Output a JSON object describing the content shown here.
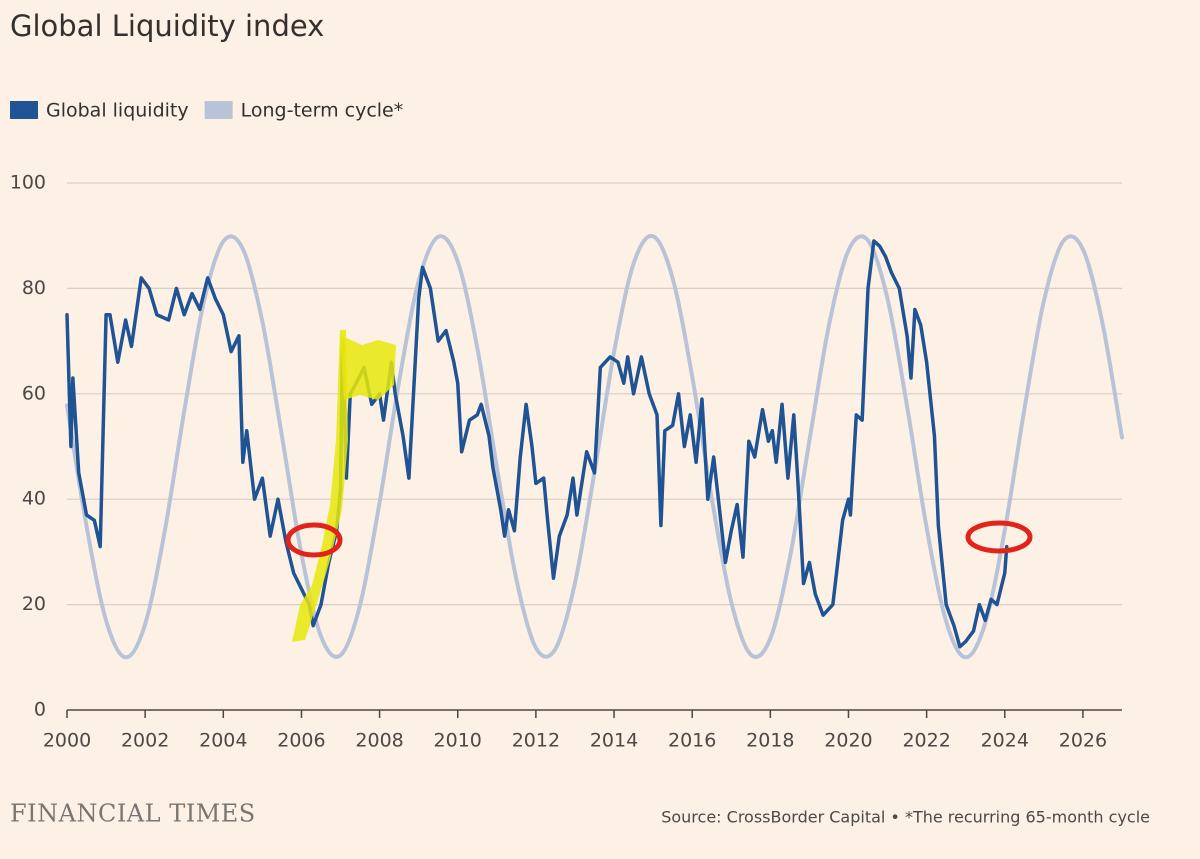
{
  "chart_data": {
    "type": "line",
    "title": "Global Liquidity index",
    "legend": "top-left",
    "grid": true,
    "xlim": [
      2000,
      2027
    ],
    "xticks": [
      2000,
      2002,
      2004,
      2006,
      2008,
      2010,
      2012,
      2014,
      2016,
      2018,
      2020,
      2022,
      2024,
      2026
    ],
    "ylim": [
      0,
      100
    ],
    "yticks": [
      0,
      20,
      40,
      60,
      80,
      100
    ],
    "source": "Source: CrossBorder Capital • *The recurring 65-month cycle",
    "brand": "FINANCIAL TIMES",
    "series": [
      {
        "name": "Global liquidity",
        "color": "#1f5394",
        "x": [
          2000.0,
          2000.1,
          2000.15,
          2000.3,
          2000.5,
          2000.7,
          2000.85,
          2001.0,
          2001.1,
          2001.3,
          2001.5,
          2001.65,
          2001.9,
          2002.1,
          2002.3,
          2002.6,
          2002.8,
          2003.0,
          2003.2,
          2003.4,
          2003.6,
          2003.8,
          2004.0,
          2004.2,
          2004.4,
          2004.5,
          2004.6,
          2004.8,
          2005.0,
          2005.2,
          2005.4,
          2005.6,
          2005.8,
          2006.0,
          2006.2,
          2006.3,
          2006.5,
          2006.7,
          2006.9,
          2007.0,
          2007.05,
          2007.15,
          2007.25,
          2007.4,
          2007.6,
          2007.8,
          2008.0,
          2008.1,
          2008.3,
          2008.4,
          2008.6,
          2008.75,
          2009.0,
          2009.1,
          2009.3,
          2009.5,
          2009.7,
          2009.9,
          2010.0,
          2010.1,
          2010.3,
          2010.5,
          2010.6,
          2010.8,
          2010.9,
          2011.1,
          2011.2,
          2011.3,
          2011.45,
          2011.6,
          2011.75,
          2011.9,
          2012.0,
          2012.2,
          2012.3,
          2012.45,
          2012.6,
          2012.8,
          2012.95,
          2013.05,
          2013.3,
          2013.5,
          2013.65,
          2013.9,
          2014.1,
          2014.25,
          2014.35,
          2014.5,
          2014.7,
          2014.9,
          2015.1,
          2015.2,
          2015.3,
          2015.5,
          2015.65,
          2015.8,
          2015.95,
          2016.1,
          2016.25,
          2016.4,
          2016.55,
          2016.7,
          2016.85,
          2017.0,
          2017.15,
          2017.3,
          2017.45,
          2017.6,
          2017.8,
          2017.95,
          2018.05,
          2018.15,
          2018.3,
          2018.45,
          2018.6,
          2018.7,
          2018.85,
          2019.0,
          2019.15,
          2019.35,
          2019.6,
          2019.85,
          2020.0,
          2020.05,
          2020.2,
          2020.35,
          2020.5,
          2020.65,
          2020.8,
          2020.95,
          2021.1,
          2021.3,
          2021.5,
          2021.6,
          2021.7,
          2021.85,
          2022.0,
          2022.2,
          2022.3,
          2022.5,
          2022.7,
          2022.85,
          2023.0,
          2023.2,
          2023.35,
          2023.5,
          2023.65,
          2023.8,
          2024.0,
          2024.05
        ],
        "values": [
          75,
          50,
          63,
          45,
          37,
          36,
          31,
          75,
          75,
          66,
          74,
          69,
          82,
          80,
          75,
          74,
          80,
          75,
          79,
          76,
          82,
          78,
          75,
          68,
          71,
          47,
          53,
          40,
          44,
          33,
          40,
          32,
          26,
          23,
          20,
          16,
          20,
          28,
          34,
          42,
          70,
          44,
          60,
          62,
          65,
          58,
          60,
          55,
          66,
          60,
          52,
          44,
          78,
          84,
          80,
          70,
          72,
          66,
          62,
          49,
          55,
          56,
          58,
          52,
          46,
          38,
          33,
          38,
          34,
          48,
          58,
          50,
          43,
          44,
          36,
          25,
          33,
          37,
          44,
          37,
          49,
          45,
          65,
          67,
          66,
          62,
          67,
          60,
          67,
          60,
          56,
          35,
          53,
          54,
          60,
          50,
          56,
          47,
          59,
          40,
          48,
          38,
          28,
          34,
          39,
          29,
          51,
          48,
          57,
          51,
          53,
          47,
          58,
          44,
          56,
          44,
          24,
          28,
          22,
          18,
          20,
          36,
          40,
          37,
          56,
          55,
          80,
          89,
          88,
          86,
          83,
          80,
          71,
          63,
          76,
          73,
          66,
          52,
          35,
          20,
          16,
          12,
          13,
          15,
          20,
          17,
          21,
          20,
          26,
          31
        ]
      },
      {
        "name": "Long-term cycle*",
        "color": "#b9c3d7",
        "x": [
          2000.0,
          2000.5,
          2001.0,
          2001.5,
          2002.0,
          2002.5,
          2003.0,
          2003.5,
          2004.0,
          2004.5,
          2005.0,
          2005.5,
          2006.0,
          2006.5,
          2007.0,
          2007.5,
          2008.0,
          2008.5,
          2009.0,
          2009.5,
          2010.0,
          2010.5,
          2011.0,
          2011.5,
          2012.0,
          2012.5,
          2013.0,
          2013.5,
          2014.0,
          2014.5,
          2015.0,
          2015.5,
          2016.0,
          2016.5,
          2017.0,
          2017.5,
          2018.0,
          2018.5,
          2019.0,
          2019.5,
          2020.0,
          2020.5,
          2021.0,
          2021.5,
          2022.0,
          2022.5,
          2023.0,
          2023.5,
          2024.0,
          2024.5,
          2025.0,
          2025.5,
          2026.0,
          2026.5,
          2027.0
        ],
        "values": [
          57.8,
          34.9,
          17.0,
          10.0,
          16.3,
          33.9,
          56.7,
          77.4,
          88.9,
          87.5,
          73.7,
          52.0,
          29.6,
          14.0,
          10.4,
          19.9,
          39.4,
          62.4,
          81.4,
          89.8,
          85.1,
          68.7,
          46.1,
          24.8,
          11.8,
          11.6,
          24.1,
          45.2,
          67.9,
          84.7,
          89.9,
          81.9,
          63.3,
          40.2,
          20.5,
          10.5,
          13.6,
          28.9,
          51.1,
          73.0,
          87.2,
          89.1,
          78.0,
          57.6,
          34.6,
          16.8,
          10.0,
          16.5,
          34.1,
          57.0,
          77.6,
          89.0,
          87.4,
          73.4,
          51.7
        ]
      }
    ]
  }
}
